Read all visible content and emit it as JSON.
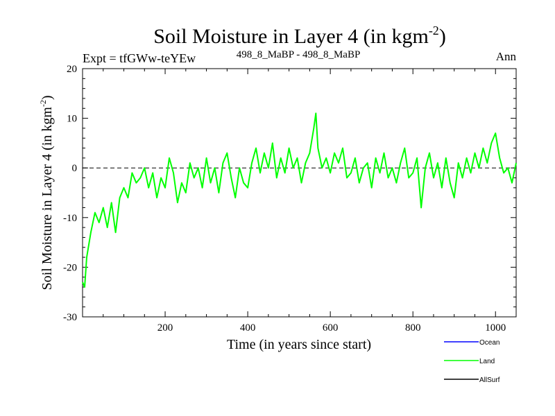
{
  "chart_data": {
    "type": "line",
    "title": "Soil Moisture in Layer 4 (in kgm",
    "title_sup": "-2",
    "title_close": ")",
    "subtitle_left": "Expt = tfGWw-teYEw",
    "subtitle_center": "498_8_MaBP - 498_8_MaBP",
    "subtitle_right": "Ann",
    "xlabel": "Time (in years since start)",
    "ylabel": "Soil Moisture in Layer 4 (in kgm",
    "ylabel_sup": "-2",
    "ylabel_close": ")",
    "xlim": [
      0,
      1050
    ],
    "ylim": [
      -30,
      20
    ],
    "xticks": [
      200,
      400,
      600,
      800,
      1000
    ],
    "yticks": [
      -30,
      -20,
      -10,
      0,
      10,
      20
    ],
    "reference_line": 0,
    "series": [
      {
        "name": "Ocean",
        "color": "#0000ff",
        "x": [],
        "y": []
      },
      {
        "name": "Land",
        "color": "#00ff00",
        "x": [
          0,
          5,
          10,
          20,
          30,
          40,
          50,
          60,
          70,
          80,
          90,
          100,
          110,
          120,
          130,
          140,
          150,
          160,
          170,
          180,
          190,
          200,
          210,
          220,
          230,
          240,
          250,
          260,
          270,
          280,
          290,
          300,
          310,
          320,
          330,
          340,
          350,
          360,
          370,
          380,
          390,
          400,
          410,
          420,
          430,
          440,
          450,
          460,
          470,
          480,
          490,
          500,
          510,
          520,
          530,
          540,
          550,
          560,
          565,
          570,
          580,
          590,
          600,
          610,
          620,
          630,
          640,
          650,
          660,
          670,
          680,
          690,
          700,
          710,
          720,
          730,
          740,
          750,
          760,
          770,
          780,
          790,
          800,
          810,
          820,
          830,
          840,
          850,
          860,
          870,
          880,
          890,
          900,
          910,
          920,
          930,
          940,
          950,
          960,
          970,
          980,
          990,
          1000,
          1010,
          1020,
          1030,
          1040,
          1050
        ],
        "y": [
          -23,
          -24,
          -18,
          -13,
          -9,
          -11,
          -8,
          -12,
          -7,
          -13,
          -6,
          -4,
          -6,
          -1,
          -3,
          -2,
          0,
          -4,
          -1,
          -6,
          -2,
          -4,
          2,
          -1,
          -7,
          -3,
          -5,
          1,
          -2,
          0,
          -4,
          2,
          -3,
          0,
          -5,
          1,
          3,
          -2,
          -6,
          0,
          -3,
          -4,
          1,
          4,
          -1,
          3,
          0,
          5,
          -2,
          2,
          -1,
          4,
          0,
          2,
          -3,
          1,
          3,
          8,
          11,
          4,
          0,
          2,
          -1,
          3,
          1,
          4,
          -2,
          -1,
          2,
          -3,
          0,
          1,
          -4,
          2,
          -1,
          3,
          -2,
          0,
          -3,
          1,
          4,
          -2,
          -1,
          2,
          -8,
          0,
          3,
          -2,
          1,
          -4,
          2,
          -3,
          -6,
          1,
          -2,
          2,
          -1,
          3,
          0,
          4,
          1,
          5,
          7,
          2,
          -1,
          0,
          -3,
          1
        ]
      },
      {
        "name": "AllSurf",
        "color": "#000000",
        "x": [],
        "y": []
      }
    ]
  }
}
